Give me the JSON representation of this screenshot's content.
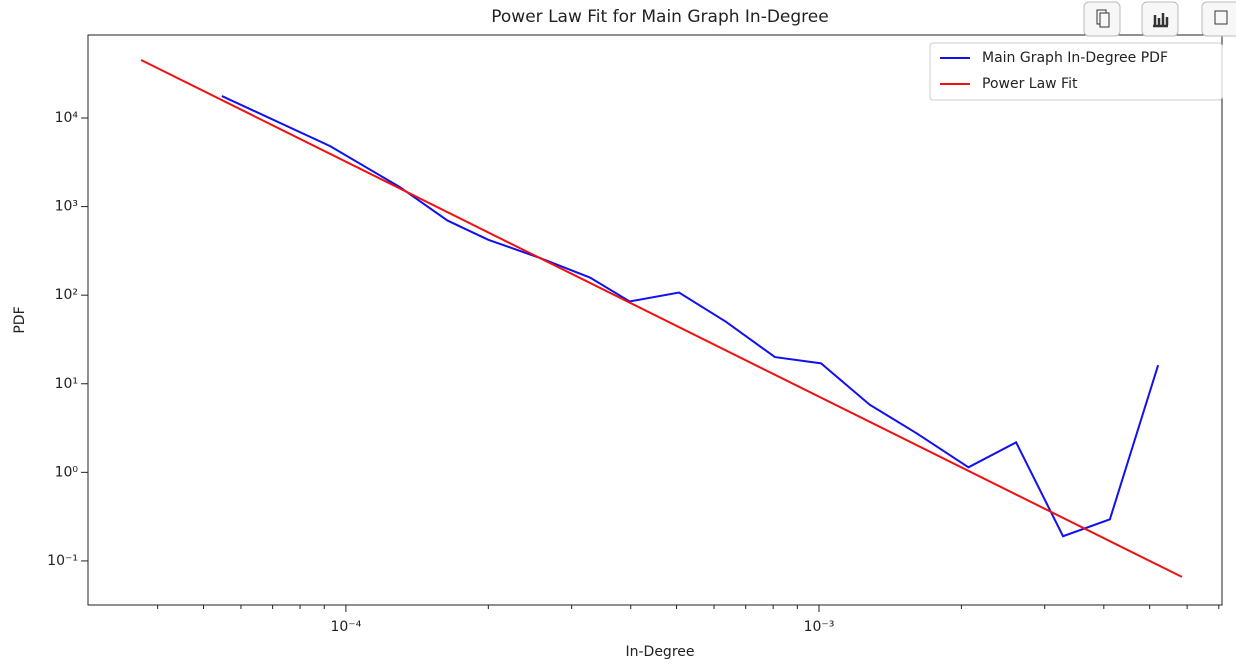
{
  "chart_data": {
    "type": "line",
    "title": "Power Law Fit for Main Graph In-Degree",
    "xlabel": "In-Degree",
    "ylabel": "PDF",
    "xscale": "log",
    "yscale": "log",
    "xlim": [
      2.85e-05,
      0.00711
    ],
    "ylim": [
      0.0318,
      86500
    ],
    "xticks": [
      {
        "value": 0.0001,
        "label": "10⁻⁴"
      },
      {
        "value": 0.001,
        "label": "10⁻³"
      }
    ],
    "xminorticks": [
      4e-05,
      5e-05,
      6e-05,
      7e-05,
      8e-05,
      9e-05,
      0.0002,
      0.0003,
      0.0004,
      0.0005,
      0.0006,
      0.0007,
      0.0008,
      0.0009,
      0.002,
      0.003,
      0.004,
      0.005,
      0.006,
      0.007
    ],
    "yticks": [
      {
        "value": 0.1,
        "label": "10⁻¹"
      },
      {
        "value": 1,
        "label": "10⁰"
      },
      {
        "value": 10,
        "label": "10¹"
      },
      {
        "value": 100,
        "label": "10²"
      },
      {
        "value": 1000,
        "label": "10³"
      },
      {
        "value": 10000,
        "label": "10⁴"
      }
    ],
    "legend": "upper right",
    "series": [
      {
        "name": "Main Graph In-Degree PDF",
        "color": "#1010f0",
        "x": [
          5.47e-05,
          9.25e-05,
          0.00013,
          0.000164,
          0.0002,
          0.000257,
          0.000328,
          0.000398,
          0.000506,
          0.000636,
          0.000807,
          0.00101,
          0.00128,
          0.00161,
          0.00207,
          0.00261,
          0.00328,
          0.00412,
          0.00521
        ],
        "values": [
          17700,
          4830,
          1660,
          695,
          422,
          263,
          158,
          85,
          107,
          50,
          20,
          17,
          5.8,
          2.75,
          1.14,
          2.18,
          0.19,
          0.295,
          16.2
        ]
      },
      {
        "name": "Power Law Fit",
        "color": "#f01010",
        "x": [
          3.69e-05,
          0.00585
        ],
        "values": [
          45200,
          0.066
        ]
      }
    ]
  }
}
